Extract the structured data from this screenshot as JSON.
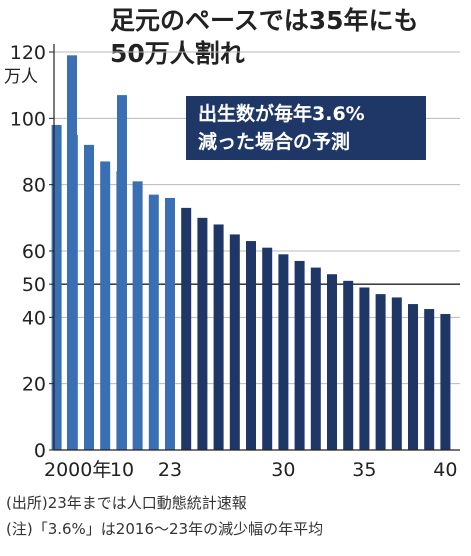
{
  "title_lines": [
    "足元のペースでは35年にも",
    "50万人割れ"
  ],
  "annotation_lines": [
    "出生数が毎年3.6%",
    "減った場合の予測"
  ],
  "notes": [
    "(出所)23年までは人口動態統計速報",
    "(注)「3.6%」は2016～23年の減少幅の年平均"
  ],
  "colors": {
    "actual_bar": "#3a6fb3",
    "forecast_bar": "#1f3766",
    "annotation_bg": "#1f3766",
    "axis": "#222222",
    "grid": "#b8b8b8",
    "reference_line": "#222222"
  },
  "chart_data": {
    "type": "bar",
    "yunit": "万人",
    "ylim": [
      0,
      125
    ],
    "y_ticks": [
      0,
      20,
      40,
      50,
      60,
      80,
      100,
      120
    ],
    "reference_line": 50,
    "grid": true,
    "x_ticks": [
      {
        "x": 2000,
        "label": "2000年"
      },
      {
        "x": 2010,
        "label": "10"
      },
      {
        "x": 2023,
        "label": "23"
      },
      {
        "x": 2030,
        "label": "30"
      },
      {
        "x": 2035,
        "label": "35"
      },
      {
        "x": 2040,
        "label": "40"
      }
    ],
    "series": [
      {
        "kind": "actual",
        "points": [
          {
            "year": 2000,
            "value": 119
          },
          {
            "year": 2010,
            "value": 107
          },
          {
            "year": 2016,
            "value": 98
          },
          {
            "year": 2017,
            "value": 95
          },
          {
            "year": 2018,
            "value": 92
          },
          {
            "year": 2019,
            "value": 87
          },
          {
            "year": 2020,
            "value": 84
          },
          {
            "year": 2021,
            "value": 81
          },
          {
            "year": 2022,
            "value": 77
          },
          {
            "year": 2023,
            "value": 76
          }
        ]
      },
      {
        "kind": "forecast",
        "points": [
          {
            "year": 2024,
            "value": 73
          },
          {
            "year": 2025,
            "value": 70
          },
          {
            "year": 2026,
            "value": 68
          },
          {
            "year": 2027,
            "value": 65
          },
          {
            "year": 2028,
            "value": 63
          },
          {
            "year": 2029,
            "value": 61
          },
          {
            "year": 2030,
            "value": 59
          },
          {
            "year": 2031,
            "value": 57
          },
          {
            "year": 2032,
            "value": 55
          },
          {
            "year": 2033,
            "value": 53
          },
          {
            "year": 2034,
            "value": 51
          },
          {
            "year": 2035,
            "value": 49
          },
          {
            "year": 2036,
            "value": 47
          },
          {
            "year": 2037,
            "value": 46
          },
          {
            "year": 2038,
            "value": 44
          },
          {
            "year": 2039,
            "value": 42.5
          },
          {
            "year": 2040,
            "value": 41
          }
        ]
      }
    ]
  }
}
